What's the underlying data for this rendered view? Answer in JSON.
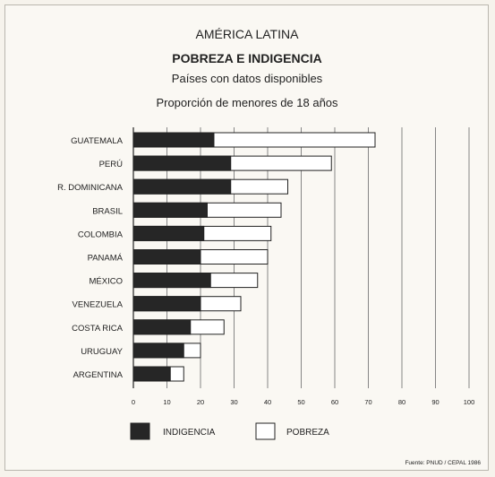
{
  "chart_data": {
    "type": "bar",
    "orientation": "horizontal",
    "stacked": "overlay",
    "title": "AMÉRICA LATINA",
    "subtitle": "POBREZA E INDIGENCIA",
    "subtitle2": "Países con datos disponibles",
    "subtitle3": "Proporción de menores de 18 años",
    "categories": [
      "GUATEMALA",
      "PERÚ",
      "R. DOMINICANA",
      "BRASIL",
      "COLOMBIA",
      "PANAMÁ",
      "MÉXICO",
      "VENEZUELA",
      "COSTA RICA",
      "URUGUAY",
      "ARGENTINA"
    ],
    "series": [
      {
        "name": "INDIGENCIA",
        "values": [
          24,
          29,
          29,
          22,
          21,
          20,
          23,
          20,
          17,
          15,
          11
        ],
        "color": "#262626"
      },
      {
        "name": "POBREZA",
        "values": [
          72,
          59,
          46,
          44,
          41,
          40,
          37,
          32,
          27,
          20,
          15
        ],
        "color": "#ffffff"
      }
    ],
    "xlim": [
      0,
      100
    ],
    "xticks": [
      "0",
      "10",
      "20",
      "30",
      "40",
      "50",
      "60",
      "70",
      "80",
      "90",
      "100"
    ],
    "grid": "vertical",
    "legend": "bottom",
    "source": "Fuente: PNUD / CEPAL 1986"
  }
}
